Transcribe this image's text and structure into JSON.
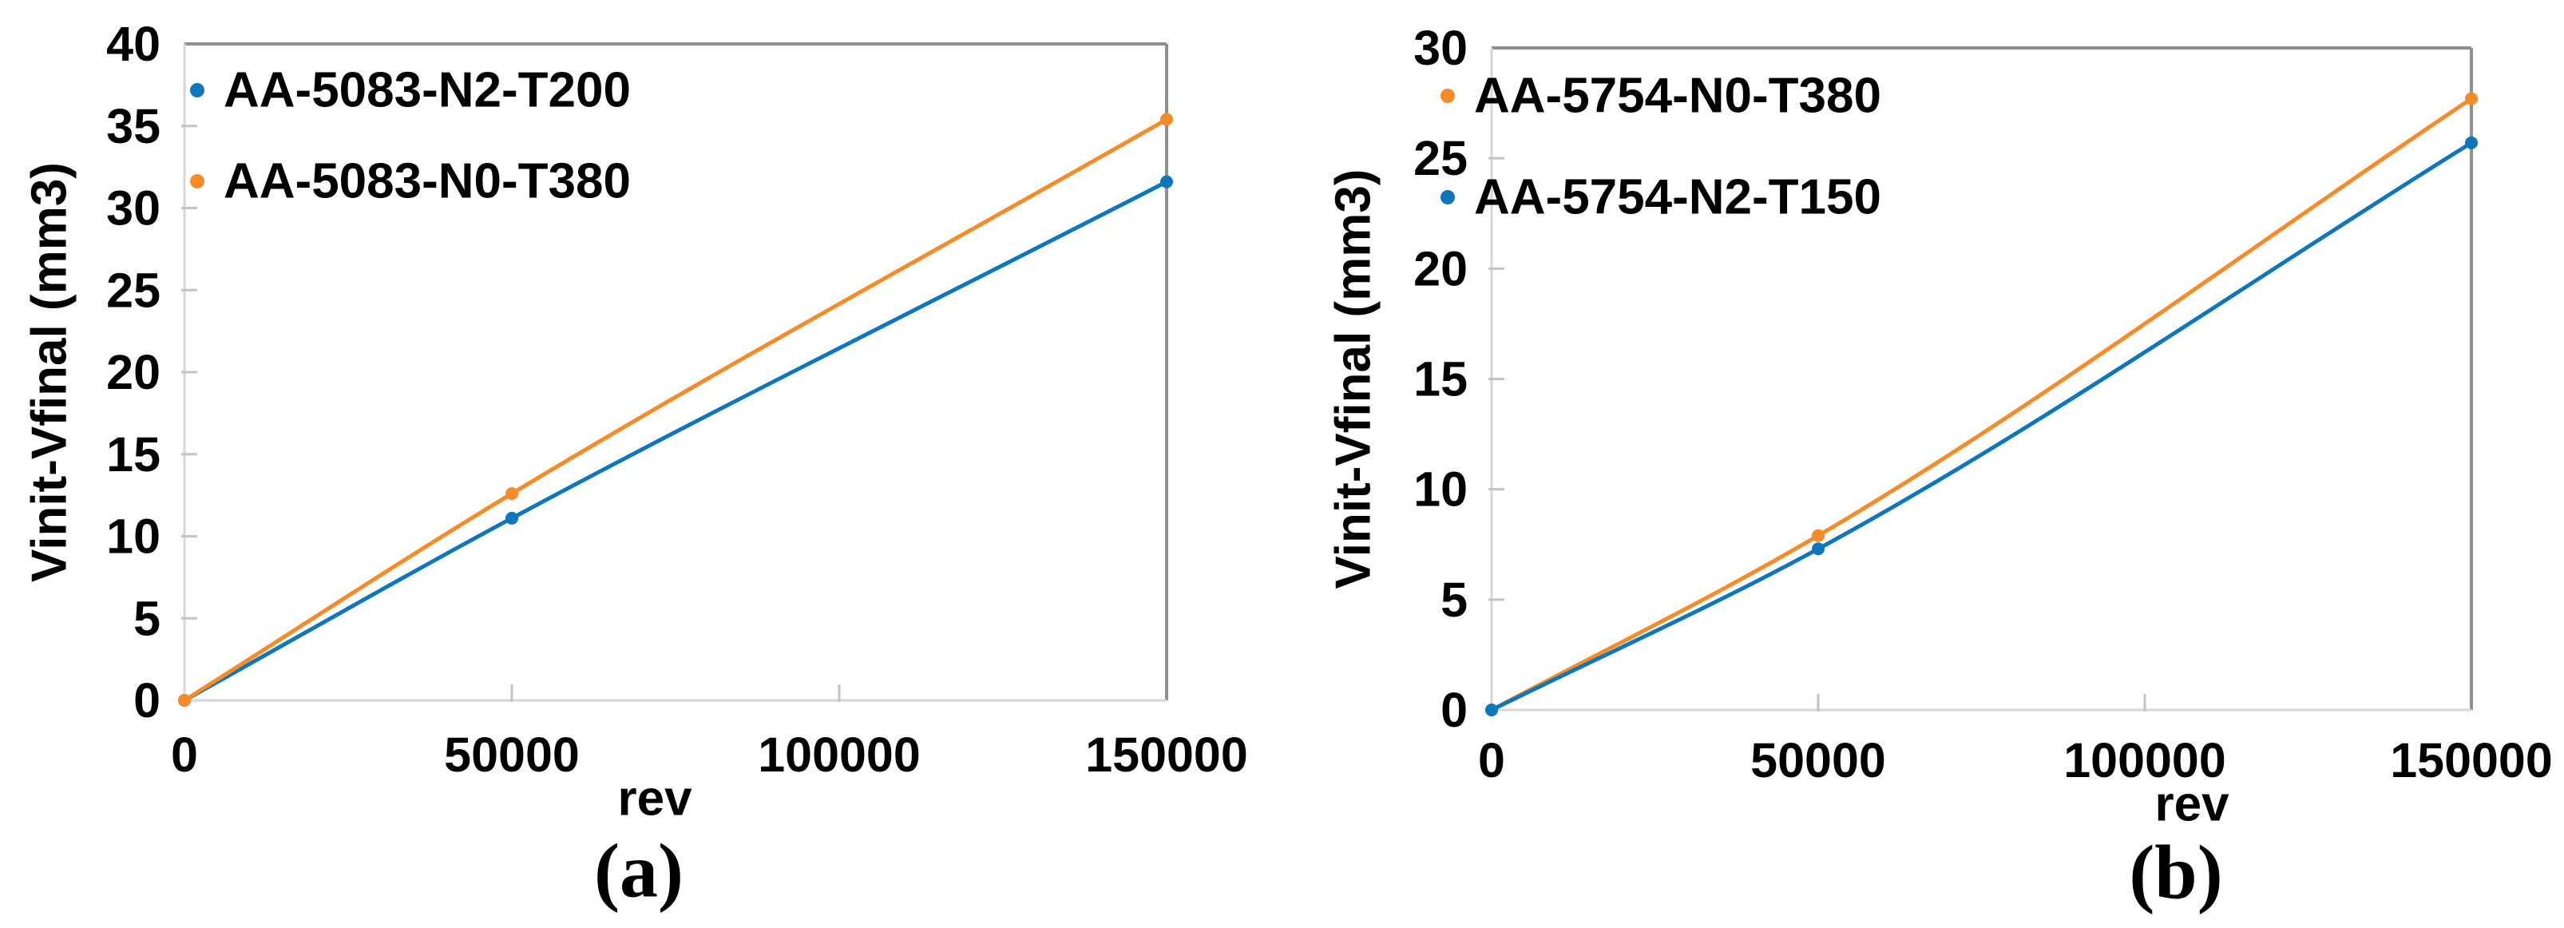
{
  "figure": {
    "background": "#ffffff",
    "text_color": "#000000"
  },
  "colors": {
    "orange": "#F68B28",
    "blue": "#0D76BC",
    "border_gray": "#8F8F8F",
    "axis_gray": "#D6D6D6",
    "tick_gray": "#C4C4C4"
  },
  "chart_data": [
    {
      "id": "a",
      "type": "line",
      "caption": "(a)",
      "xlabel": "rev",
      "ylabel": "Vinit-Vfinal (mm3)",
      "xlim": [
        0,
        150000
      ],
      "ylim": [
        0,
        40
      ],
      "grid": false,
      "legend_position": "top-left-inside",
      "x": [
        0,
        50000,
        150000
      ],
      "xticks": [
        0,
        50000,
        100000,
        150000
      ],
      "xtick_labels": [
        "0",
        "50000",
        "100000",
        "150000"
      ],
      "yticks": [
        0,
        5,
        10,
        15,
        20,
        25,
        30,
        35,
        40
      ],
      "series": [
        {
          "name": "AA-5083-N2-T200",
          "color_key": "blue",
          "values": [
            0,
            11.1,
            31.6
          ]
        },
        {
          "name": "AA-5083-N0-T380",
          "color_key": "orange",
          "values": [
            0,
            12.6,
            35.4
          ]
        }
      ]
    },
    {
      "id": "b",
      "type": "line",
      "caption": "(b)",
      "xlabel": "rev",
      "ylabel": "Vinit-Vfinal (mm3)",
      "xlim": [
        0,
        150000
      ],
      "ylim": [
        0,
        30
      ],
      "grid": false,
      "legend_position": "top-left-inside",
      "x": [
        0,
        50000,
        150000
      ],
      "xticks": [
        0,
        50000,
        100000,
        150000
      ],
      "xtick_labels": [
        "0",
        "50000",
        "100000",
        "150000"
      ],
      "yticks": [
        0,
        5,
        10,
        15,
        20,
        25,
        30
      ],
      "series": [
        {
          "name": "AA-5754-N0-T380",
          "color_key": "orange",
          "values": [
            0,
            7.9,
            27.7
          ]
        },
        {
          "name": "AA-5754-N2-T150",
          "color_key": "blue",
          "values": [
            0,
            7.3,
            25.7
          ]
        }
      ]
    }
  ]
}
